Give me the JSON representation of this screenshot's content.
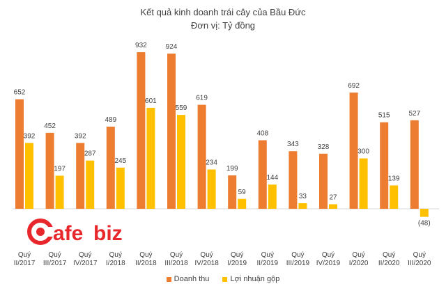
{
  "title": "Kết quả kinh doanh trái cây của Bầu Đức",
  "subtitle": "Đơn vị: Tỷ đồng",
  "logo": {
    "text_a": "afe",
    "text_b": "biz",
    "brand_color": "#e8272d"
  },
  "chart_data": {
    "type": "bar",
    "categories": [
      [
        "Quý",
        "II/2017"
      ],
      [
        "Quý",
        "III/2017"
      ],
      [
        "Quý",
        "IV/2017"
      ],
      [
        "Quý",
        "I/2018"
      ],
      [
        "Quý",
        "II/2018"
      ],
      [
        "Quý",
        "III/2018"
      ],
      [
        "Quý",
        "IV/2018"
      ],
      [
        "Quý",
        "I/2019"
      ],
      [
        "Quý",
        "II/2019"
      ],
      [
        "Quý",
        "III/2019"
      ],
      [
        "Quý",
        "IV/2019"
      ],
      [
        "Quý",
        "I/2020"
      ],
      [
        "Quý",
        "II/2020"
      ],
      [
        "Quý",
        "III/2020"
      ]
    ],
    "series": [
      {
        "name": "Doanh thu",
        "color": "#ed7d31",
        "values": [
          652,
          452,
          392,
          489,
          932,
          924,
          619,
          199,
          408,
          343,
          328,
          692,
          515,
          527
        ],
        "labels": [
          "652",
          "452",
          "392",
          "489",
          "932",
          "924",
          "619",
          "199",
          "408",
          "343",
          "328",
          "692",
          "515",
          "527"
        ]
      },
      {
        "name": "Lợi nhuận gộp",
        "color": "#ffc000",
        "values": [
          392,
          197,
          287,
          245,
          601,
          559,
          234,
          59,
          144,
          33,
          27,
          300,
          139,
          -48
        ],
        "labels": [
          "392",
          "197",
          "287",
          "245",
          "601",
          "559",
          "234",
          "59",
          "144",
          "33",
          "27",
          "300",
          "139",
          "(48)"
        ]
      }
    ],
    "legend_position": "bottom",
    "grid": false
  }
}
